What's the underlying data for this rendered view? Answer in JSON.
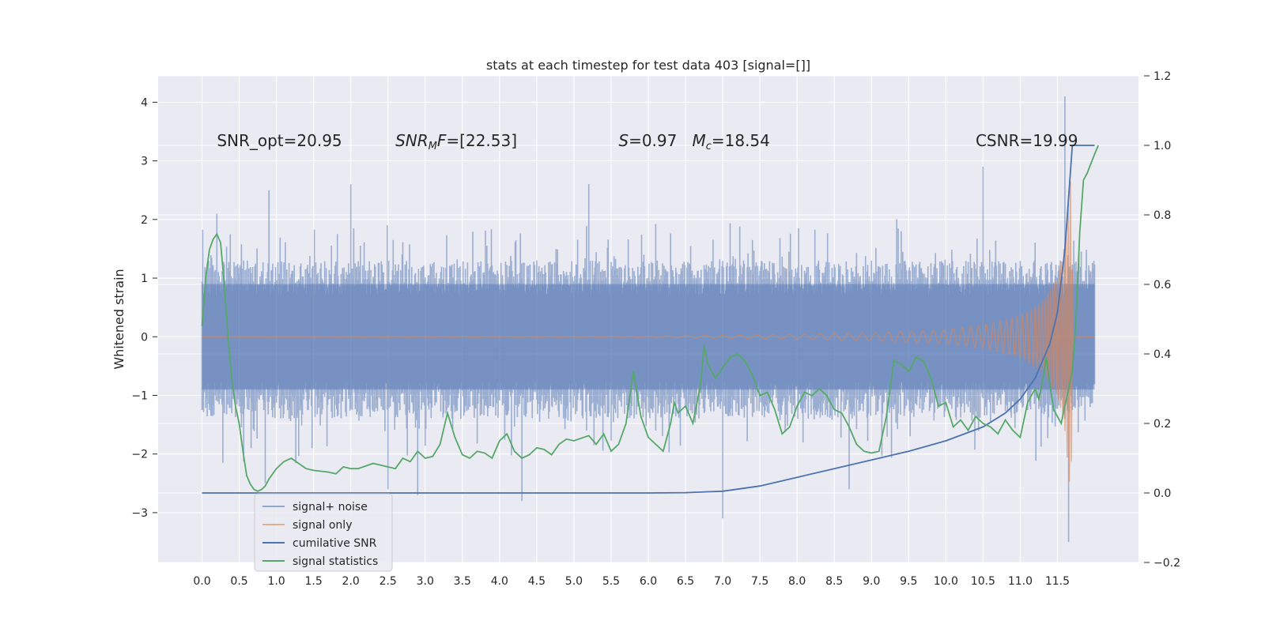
{
  "chart_data": {
    "type": "line",
    "title": "stats at each timestep for test data 403 [signal=[]]",
    "ylabel": "Whitened strain",
    "xlim": [
      -0.59,
      12.59
    ],
    "ylim": [
      -3.85,
      4.45
    ],
    "y2lim": [
      -0.2,
      1.2
    ],
    "grid": true,
    "x_ticks": [
      0.0,
      0.5,
      1.0,
      1.5,
      2.0,
      2.5,
      3.0,
      3.5,
      4.0,
      4.5,
      5.0,
      5.5,
      6.0,
      6.5,
      7.0,
      7.5,
      8.0,
      8.5,
      9.0,
      9.5,
      10.0,
      10.5,
      11.0,
      11.5
    ],
    "x_tick_labels": [
      "0.0",
      "0.5",
      "1.0",
      "1.5",
      "2.0",
      "2.5",
      "3.0",
      "3.5",
      "4.0",
      "4.5",
      "5.0",
      "5.5",
      "6.0",
      "6.5",
      "7.0",
      "7.5",
      "8.0",
      "8.5",
      "9.0",
      "9.5",
      "10.0",
      "10.5",
      "11.0",
      "11.5"
    ],
    "y_ticks": [
      -3,
      -2,
      -1,
      0,
      1,
      2,
      3,
      4
    ],
    "y_tick_labels": [
      "−3",
      "−2",
      "−1",
      "0",
      "1",
      "2",
      "3",
      "4"
    ],
    "y2_ticks": [
      -0.2,
      0.0,
      0.2,
      0.4,
      0.6,
      0.8,
      1.0,
      1.2
    ],
    "y2_tick_labels": [
      "−0.2",
      "0.0",
      "0.2",
      "0.4",
      "0.6",
      "0.8",
      "1.0",
      "1.2"
    ],
    "annotations": [
      {
        "text": "SNR_opt=20.95",
        "x": 0.2,
        "y": 3.25
      },
      {
        "text": "SNR_M F=[22.53]",
        "x": 2.6,
        "y": 3.25
      },
      {
        "text": "S=0.97   M_c=18.54",
        "x": 5.6,
        "y": 3.25
      },
      {
        "text": "CSNR=19.99",
        "x": 10.4,
        "y": 3.25
      }
    ],
    "legend_position": "lower-left",
    "legend": [
      "signal+ noise",
      "signal only",
      "cumilative SNR",
      "signal statistics"
    ],
    "series": [
      {
        "name": "signal+ noise",
        "axis": "left",
        "color": "#4c72b0",
        "x_range": [
          0.0,
          12.0
        ],
        "typical_upper": 1.3,
        "typical_lower": -1.4,
        "peaks": [
          {
            "x": 0.2,
            "y": 2.1
          },
          {
            "x": 0.9,
            "y": 2.5
          },
          {
            "x": 0.85,
            "y": -2.5
          },
          {
            "x": 2.0,
            "y": 2.6
          },
          {
            "x": 2.5,
            "y": -2.6
          },
          {
            "x": 2.9,
            "y": -2.7
          },
          {
            "x": 4.3,
            "y": -2.8
          },
          {
            "x": 5.2,
            "y": 2.6
          },
          {
            "x": 7.0,
            "y": -3.1
          },
          {
            "x": 8.7,
            "y": -2.6
          },
          {
            "x": 10.5,
            "y": 2.9
          },
          {
            "x": 11.6,
            "y": 4.1
          },
          {
            "x": 11.65,
            "y": -3.5
          }
        ]
      },
      {
        "name": "signal only",
        "axis": "left",
        "color": "#dd8452",
        "x_range": [
          0.0,
          12.0
        ],
        "envelope": [
          [
            0.0,
            0.0
          ],
          [
            6.0,
            0.01
          ],
          [
            8.0,
            0.04
          ],
          [
            9.0,
            0.07
          ],
          [
            10.0,
            0.12
          ],
          [
            10.5,
            0.2
          ],
          [
            11.0,
            0.35
          ],
          [
            11.3,
            0.6
          ],
          [
            11.5,
            1.0
          ],
          [
            11.6,
            1.6
          ],
          [
            11.68,
            2.8
          ],
          [
            11.72,
            0.0
          ],
          [
            12.0,
            0.0
          ]
        ]
      },
      {
        "name": "cumilative SNR",
        "axis": "right",
        "color": "#4c72b0",
        "points": [
          [
            0.0,
            0.0
          ],
          [
            6.0,
            0.0
          ],
          [
            6.5,
            0.001
          ],
          [
            7.0,
            0.005
          ],
          [
            7.5,
            0.02
          ],
          [
            8.0,
            0.045
          ],
          [
            8.5,
            0.07
          ],
          [
            9.0,
            0.095
          ],
          [
            9.5,
            0.12
          ],
          [
            10.0,
            0.15
          ],
          [
            10.5,
            0.19
          ],
          [
            10.8,
            0.23
          ],
          [
            11.0,
            0.27
          ],
          [
            11.2,
            0.33
          ],
          [
            11.4,
            0.43
          ],
          [
            11.5,
            0.52
          ],
          [
            11.6,
            0.7
          ],
          [
            11.65,
            0.85
          ],
          [
            11.7,
            1.0
          ],
          [
            12.0,
            1.0
          ]
        ]
      },
      {
        "name": "signal statistics",
        "axis": "right",
        "color": "#55a868",
        "points": [
          [
            0.0,
            0.48
          ],
          [
            0.05,
            0.62
          ],
          [
            0.1,
            0.7
          ],
          [
            0.15,
            0.73
          ],
          [
            0.2,
            0.745
          ],
          [
            0.25,
            0.72
          ],
          [
            0.3,
            0.6
          ],
          [
            0.35,
            0.45
          ],
          [
            0.4,
            0.33
          ],
          [
            0.45,
            0.25
          ],
          [
            0.5,
            0.2
          ],
          [
            0.55,
            0.12
          ],
          [
            0.6,
            0.05
          ],
          [
            0.65,
            0.025
          ],
          [
            0.7,
            0.01
          ],
          [
            0.75,
            0.005
          ],
          [
            0.8,
            0.01
          ],
          [
            0.85,
            0.02
          ],
          [
            0.9,
            0.04
          ],
          [
            1.0,
            0.07
          ],
          [
            1.1,
            0.09
          ],
          [
            1.2,
            0.1
          ],
          [
            1.3,
            0.085
          ],
          [
            1.4,
            0.07
          ],
          [
            1.5,
            0.065
          ],
          [
            1.7,
            0.06
          ],
          [
            1.8,
            0.055
          ],
          [
            1.9,
            0.075
          ],
          [
            2.0,
            0.07
          ],
          [
            2.1,
            0.07
          ],
          [
            2.3,
            0.085
          ],
          [
            2.4,
            0.08
          ],
          [
            2.5,
            0.075
          ],
          [
            2.6,
            0.07
          ],
          [
            2.7,
            0.1
          ],
          [
            2.8,
            0.09
          ],
          [
            2.9,
            0.12
          ],
          [
            3.0,
            0.1
          ],
          [
            3.1,
            0.105
          ],
          [
            3.2,
            0.14
          ],
          [
            3.3,
            0.23
          ],
          [
            3.4,
            0.16
          ],
          [
            3.5,
            0.11
          ],
          [
            3.6,
            0.1
          ],
          [
            3.7,
            0.12
          ],
          [
            3.8,
            0.115
          ],
          [
            3.9,
            0.1
          ],
          [
            4.0,
            0.15
          ],
          [
            4.1,
            0.17
          ],
          [
            4.2,
            0.12
          ],
          [
            4.3,
            0.1
          ],
          [
            4.4,
            0.11
          ],
          [
            4.5,
            0.13
          ],
          [
            4.6,
            0.125
          ],
          [
            4.7,
            0.11
          ],
          [
            4.8,
            0.14
          ],
          [
            4.9,
            0.155
          ],
          [
            5.0,
            0.15
          ],
          [
            5.2,
            0.165
          ],
          [
            5.3,
            0.14
          ],
          [
            5.4,
            0.17
          ],
          [
            5.5,
            0.12
          ],
          [
            5.6,
            0.14
          ],
          [
            5.7,
            0.2
          ],
          [
            5.8,
            0.35
          ],
          [
            5.9,
            0.22
          ],
          [
            6.0,
            0.16
          ],
          [
            6.1,
            0.14
          ],
          [
            6.2,
            0.12
          ],
          [
            6.3,
            0.2
          ],
          [
            6.35,
            0.26
          ],
          [
            6.4,
            0.23
          ],
          [
            6.5,
            0.25
          ],
          [
            6.6,
            0.2
          ],
          [
            6.7,
            0.31
          ],
          [
            6.75,
            0.425
          ],
          [
            6.8,
            0.37
          ],
          [
            6.9,
            0.33
          ],
          [
            7.0,
            0.36
          ],
          [
            7.1,
            0.39
          ],
          [
            7.2,
            0.4
          ],
          [
            7.3,
            0.38
          ],
          [
            7.4,
            0.34
          ],
          [
            7.5,
            0.28
          ],
          [
            7.6,
            0.29
          ],
          [
            7.7,
            0.24
          ],
          [
            7.8,
            0.17
          ],
          [
            7.9,
            0.19
          ],
          [
            8.0,
            0.25
          ],
          [
            8.1,
            0.29
          ],
          [
            8.2,
            0.28
          ],
          [
            8.3,
            0.3
          ],
          [
            8.4,
            0.28
          ],
          [
            8.5,
            0.24
          ],
          [
            8.6,
            0.23
          ],
          [
            8.7,
            0.19
          ],
          [
            8.8,
            0.14
          ],
          [
            8.9,
            0.12
          ],
          [
            9.0,
            0.115
          ],
          [
            9.1,
            0.12
          ],
          [
            9.2,
            0.22
          ],
          [
            9.3,
            0.38
          ],
          [
            9.4,
            0.37
          ],
          [
            9.5,
            0.35
          ],
          [
            9.6,
            0.39
          ],
          [
            9.7,
            0.38
          ],
          [
            9.8,
            0.33
          ],
          [
            9.9,
            0.25
          ],
          [
            10.0,
            0.26
          ],
          [
            10.1,
            0.19
          ],
          [
            10.2,
            0.21
          ],
          [
            10.3,
            0.18
          ],
          [
            10.4,
            0.22
          ],
          [
            10.5,
            0.2
          ],
          [
            10.6,
            0.19
          ],
          [
            10.7,
            0.17
          ],
          [
            10.8,
            0.21
          ],
          [
            10.9,
            0.18
          ],
          [
            11.0,
            0.16
          ],
          [
            11.1,
            0.26
          ],
          [
            11.2,
            0.3
          ],
          [
            11.25,
            0.27
          ],
          [
            11.3,
            0.32
          ],
          [
            11.35,
            0.39
          ],
          [
            11.4,
            0.31
          ],
          [
            11.45,
            0.24
          ],
          [
            11.5,
            0.22
          ],
          [
            11.55,
            0.2
          ],
          [
            11.6,
            0.25
          ],
          [
            11.65,
            0.3
          ],
          [
            11.7,
            0.35
          ],
          [
            11.75,
            0.5
          ],
          [
            11.8,
            0.75
          ],
          [
            11.85,
            0.9
          ],
          [
            11.9,
            0.92
          ],
          [
            12.0,
            0.975
          ],
          [
            12.05,
            1.0
          ]
        ]
      }
    ]
  }
}
